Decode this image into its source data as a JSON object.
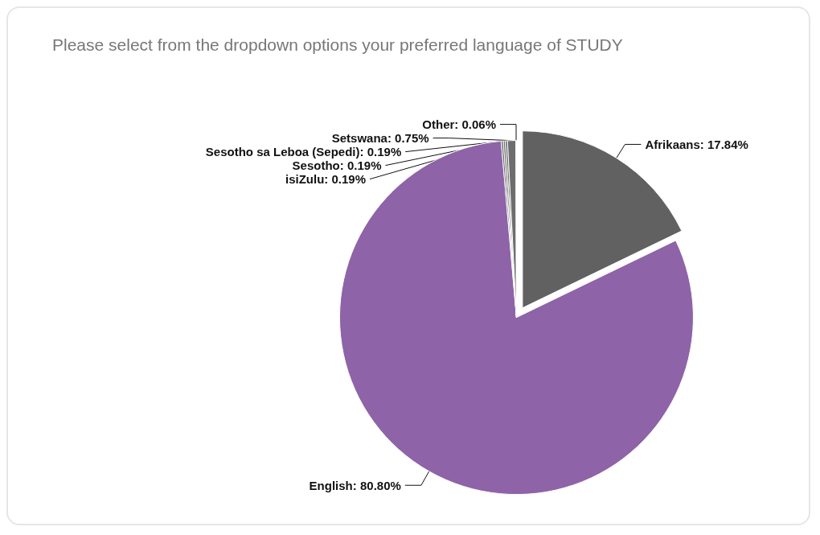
{
  "chart_data": {
    "type": "pie",
    "title": "Please select from the dropdown options your preferred language of STUDY",
    "categories": [
      "Afrikaans",
      "English",
      "isiZulu",
      "Sesotho",
      "Sesotho sa Leboa (Sepedi)",
      "Setswana",
      "Other"
    ],
    "values": [
      17.84,
      80.8,
      0.19,
      0.19,
      0.19,
      0.75,
      0.06
    ],
    "value_labels": [
      "17.84%",
      "80.80%",
      "0.19%",
      "0.19%",
      "0.19%",
      "0.75%",
      "0.06%"
    ],
    "colors": [
      "#616161",
      "#8e63a8",
      "#6a6a6a",
      "#707070",
      "#666666",
      "#6d6d6d",
      "#5e5e5e"
    ],
    "legend": false
  }
}
